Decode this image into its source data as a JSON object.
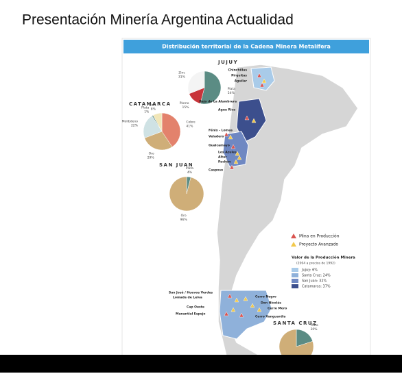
{
  "header": {
    "title": "Presentación Minería Argentina Actualidad"
  },
  "map": {
    "title": "Distribución territorial de la Cadena Minera Metalífera",
    "provinces": [
      {
        "name": "JUJUY",
        "pie": [
          {
            "label": "Plata",
            "value": 54,
            "value_label": "54%",
            "color": "#5b8c84"
          },
          {
            "label": "Plomo",
            "value": 15,
            "value_label": "15%",
            "color": "#c8343a"
          },
          {
            "label": "Zinc",
            "value": 31,
            "value_label": "31%",
            "color": "#f4f4f4"
          }
        ]
      },
      {
        "name": "CATAMARCA",
        "pie": [
          {
            "label": "Cobre",
            "value": 41,
            "value_label": "41%",
            "color": "#e3826c"
          },
          {
            "label": "Oro",
            "value": 29,
            "value_label": "29%",
            "color": "#cfae78"
          },
          {
            "label": "Molibdeno",
            "value": 22,
            "value_label": "22%",
            "color": "#cfe2e4"
          },
          {
            "label": "Plata",
            "value": 1,
            "value_label": "1%",
            "color": "#5b8c84"
          },
          {
            "label": "Zinc",
            "value": 8,
            "value_label": "8%",
            "color": "#f1e6b8"
          }
        ]
      },
      {
        "name": "SAN JUAN",
        "pie": [
          {
            "label": "Plata",
            "value": 4,
            "value_label": "4%",
            "color": "#5b8c84"
          },
          {
            "label": "Oro",
            "value": 96,
            "value_label": "96%",
            "color": "#cfae78"
          }
        ]
      },
      {
        "name": "SANTA CRUZ",
        "pie": [
          {
            "label": "Plata",
            "value": 20,
            "value_label": "20%",
            "color": "#5b8c84"
          },
          {
            "label": "Oro",
            "value": 80,
            "color": "#cfae78"
          }
        ]
      }
    ],
    "sites": [
      "Chinchillas",
      "Pirquitas",
      "Aguilar",
      "Bajo de La Alumbrera",
      "Agua Rica",
      "Fénix - Lomas",
      "Veladero",
      "Gualcamayo",
      "Los Azules",
      "Altar",
      "Pachón",
      "Casposo",
      "San José / Huevos Verdes",
      "Lomada de Leiva",
      "Cap Oeste",
      "Manantial Espejo",
      "Cerro Negro",
      "Don Nicolás",
      "Cerro Moro",
      "Cerro Vanguardia"
    ],
    "legend": {
      "markers": [
        "Mina en Producción",
        "Proyecto Avanzado"
      ],
      "value_title": "Valor de la Producción Minera",
      "value_subtitle": "(2004 a precios de 1992)",
      "entries": [
        "Jujuy: 6%",
        "Santa Cruz: 24%",
        "San Juan: 32%",
        "Catamarca: 37%"
      ]
    }
  }
}
